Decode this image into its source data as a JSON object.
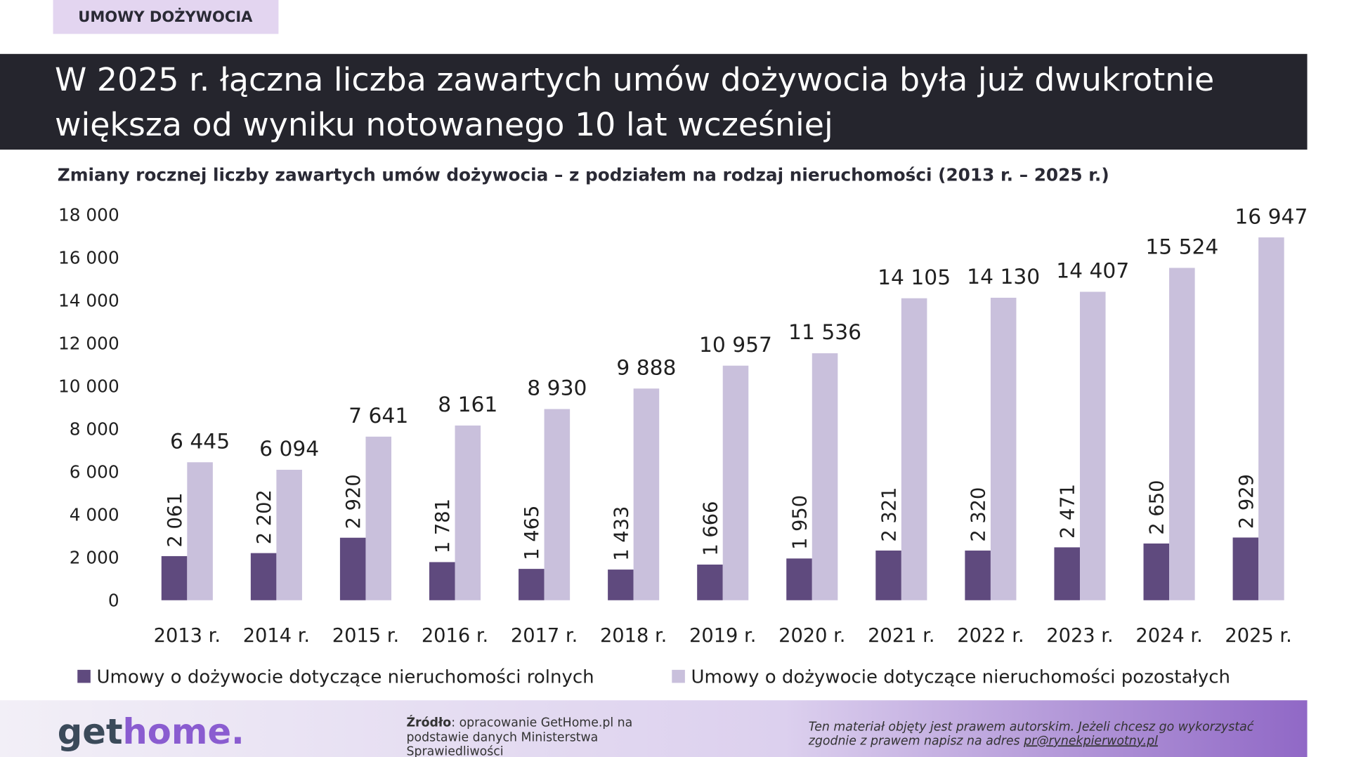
{
  "header": {
    "tag": "UMOWY DOŻYWOCIA",
    "title_lines": [
      "W 2025 r. łączna liczba zawartych umów dożywocia była już dwukrotnie",
      "większa od wyniku notowanego 10 lat wcześniej"
    ]
  },
  "chart_data": {
    "type": "bar",
    "title": "Zmiany rocznej liczby zawartych umów dożywocia – z podziałem na rodzaj nieruchomości (2013 r. – 2025 r.)",
    "categories": [
      "2013 r.",
      "2014 r.",
      "2015 r.",
      "2016 r.",
      "2017 r.",
      "2018 r.",
      "2019 r.",
      "2020 r.",
      "2021 r.",
      "2022 r.",
      "2023 r.",
      "2024 r.",
      "2025 r."
    ],
    "series": [
      {
        "name": "Umowy o dożywocie dotyczące nieruchomości rolnych",
        "color": "#5f4a7e",
        "values": [
          2061,
          2202,
          2920,
          1781,
          1465,
          1433,
          1666,
          1950,
          2321,
          2320,
          2471,
          2650,
          2929
        ],
        "value_labels": [
          "2 061",
          "2 202",
          "2 920",
          "1 781",
          "1 465",
          "1 433",
          "1 666",
          "1 950",
          "2 321",
          "2 320",
          "2 471",
          "2 650",
          "2 929"
        ]
      },
      {
        "name": "Umowy o dożywocie dotyczące nieruchomości pozostałych",
        "color": "#c9c0dc",
        "values": [
          6445,
          6094,
          7641,
          8161,
          8930,
          9888,
          10957,
          11536,
          14105,
          14130,
          14407,
          15524,
          16947
        ],
        "value_labels": [
          "6 445",
          "6 094",
          "7 641",
          "8 161",
          "8 930",
          "9 888",
          "10 957",
          "11 536",
          "14 105",
          "14 130",
          "14 407",
          "15 524",
          "16 947"
        ]
      }
    ],
    "ylim": [
      0,
      18000
    ],
    "yticks": [
      0,
      {
        "value": 2000,
        "label": "2 000"
      },
      {
        "value": 4000,
        "label": "4 000"
      },
      {
        "value": 6000,
        "label": "6 000"
      },
      {
        "value": 8000,
        "label": "8 000"
      },
      {
        "value": 10000,
        "label": "10 000"
      },
      {
        "value": 12000,
        "label": "12 000"
      },
      {
        "value": 14000,
        "label": "14 000"
      },
      {
        "value": 16000,
        "label": "16 000"
      },
      {
        "value": 18000,
        "label": "18 000"
      }
    ],
    "grid": false,
    "legend": "bottom"
  },
  "footer": {
    "logo_a": "get",
    "logo_b": "home.",
    "source_label": "Źródło",
    "source_lines": [
      ": opracowanie GetHome.pl na",
      "podstawie danych Ministerstwa",
      "Sprawiedliwości"
    ],
    "copyright_lines": [
      "Ten materiał objęty jest prawem autorskim. Jeżeli chcesz go wykorzystać",
      "zgodnie z prawem napisz na adres"
    ],
    "email": "pr@rynekpierwotny.pl"
  }
}
